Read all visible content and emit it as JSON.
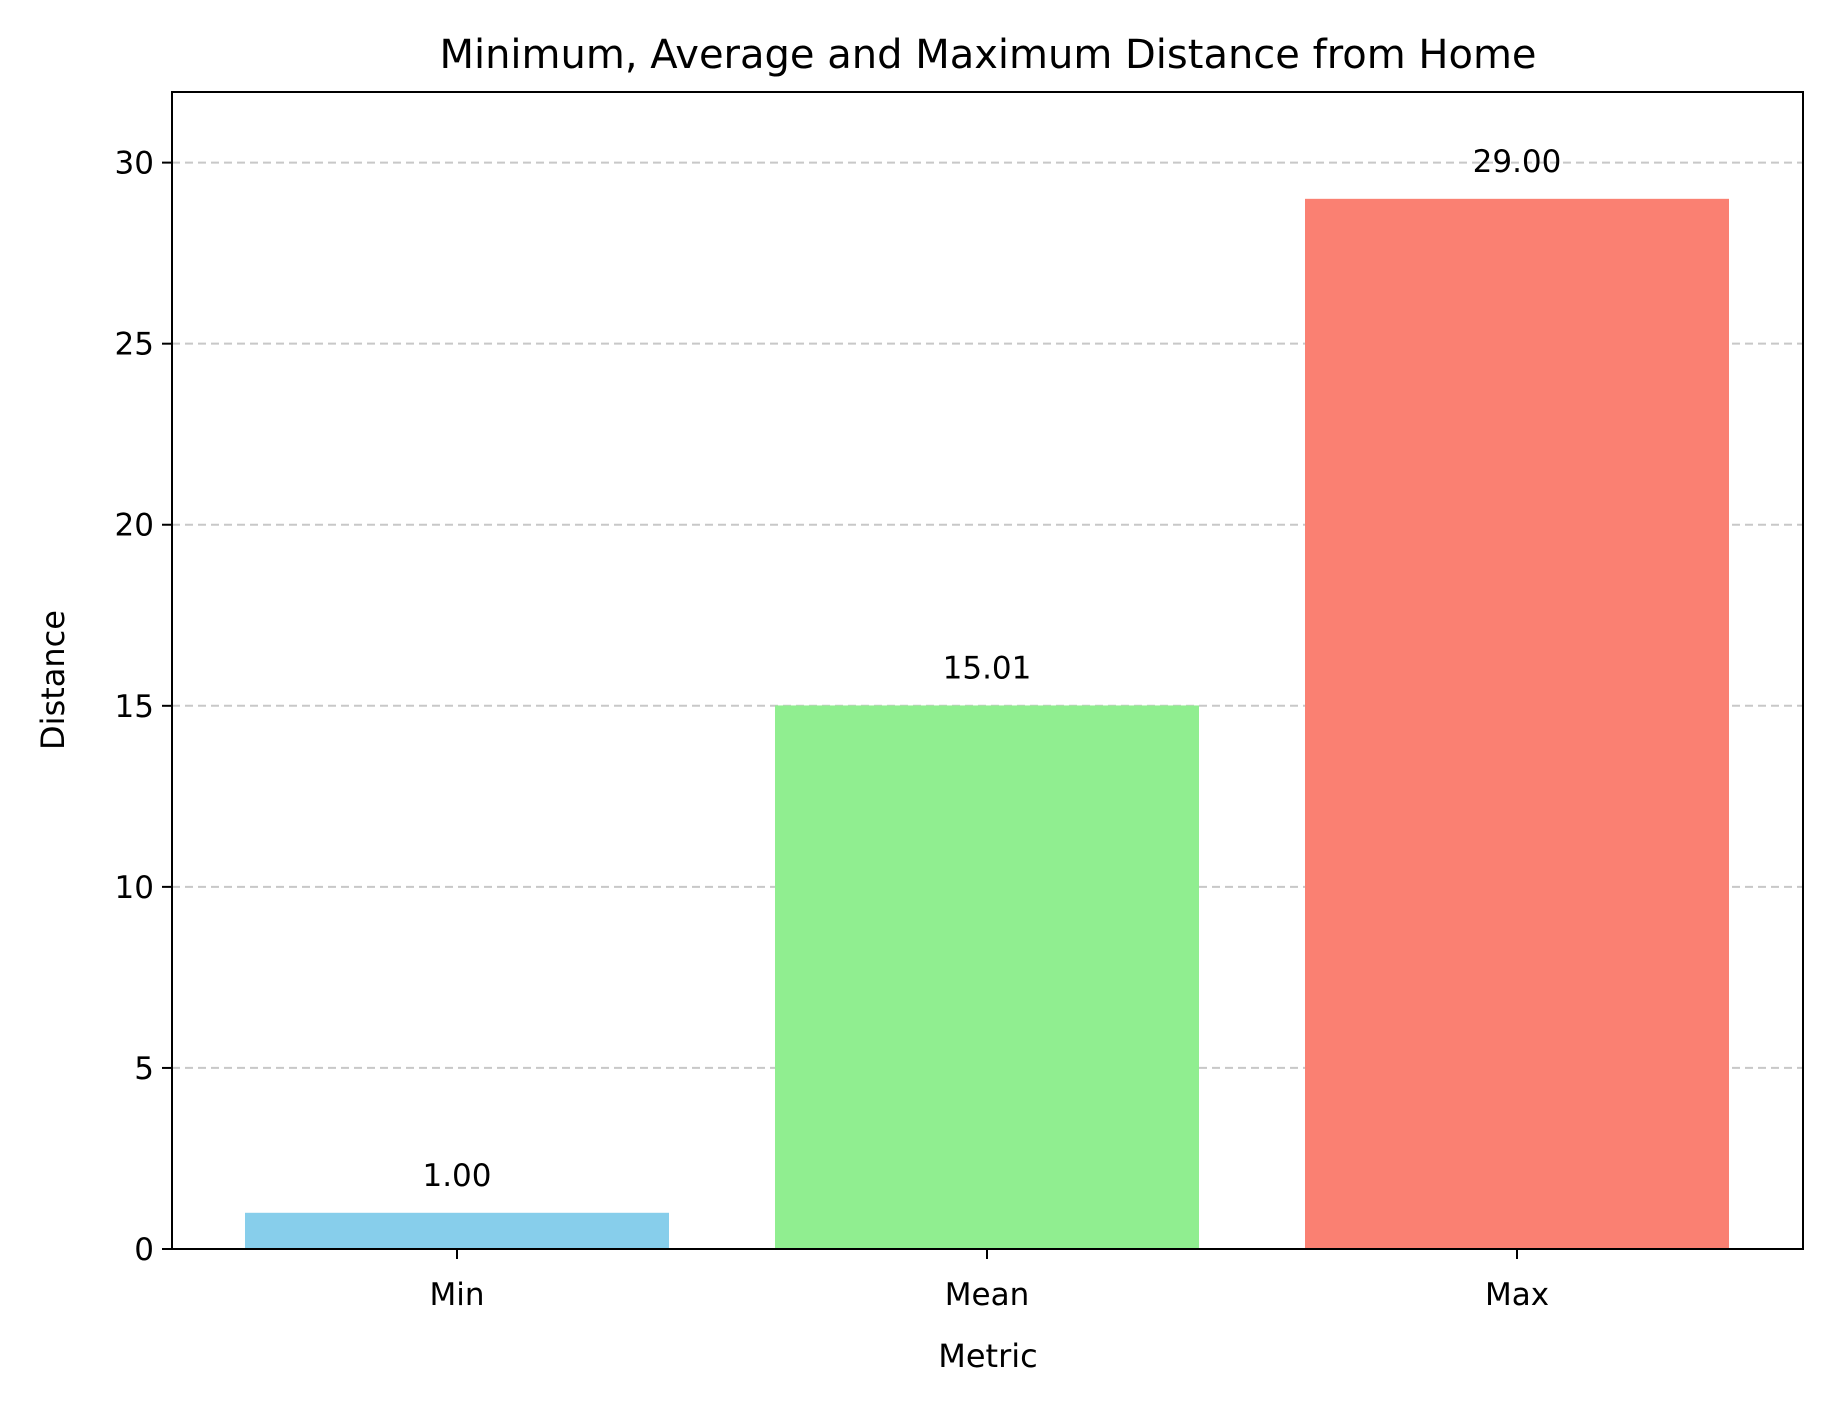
{
  "chart_data": {
    "type": "bar",
    "title": "Minimum, Average and Maximum Distance from Home",
    "xlabel": "Metric",
    "ylabel": "Distance",
    "categories": [
      "Min",
      "Mean",
      "Max"
    ],
    "values": [
      1.0,
      15.01,
      29.0
    ],
    "value_labels": [
      "1.00",
      "15.01",
      "29.00"
    ],
    "colors": [
      "#87ceeb",
      "#90ee90",
      "#fa8072"
    ],
    "ylim": [
      0,
      31.95
    ],
    "yticks": [
      0,
      5,
      10,
      15,
      20,
      25,
      30
    ],
    "ytick_labels": [
      "0",
      "5",
      "10",
      "15",
      "20",
      "25",
      "30"
    ],
    "grid": "y-dashed",
    "grid_color": "#c8c8c8",
    "legend": "none"
  }
}
